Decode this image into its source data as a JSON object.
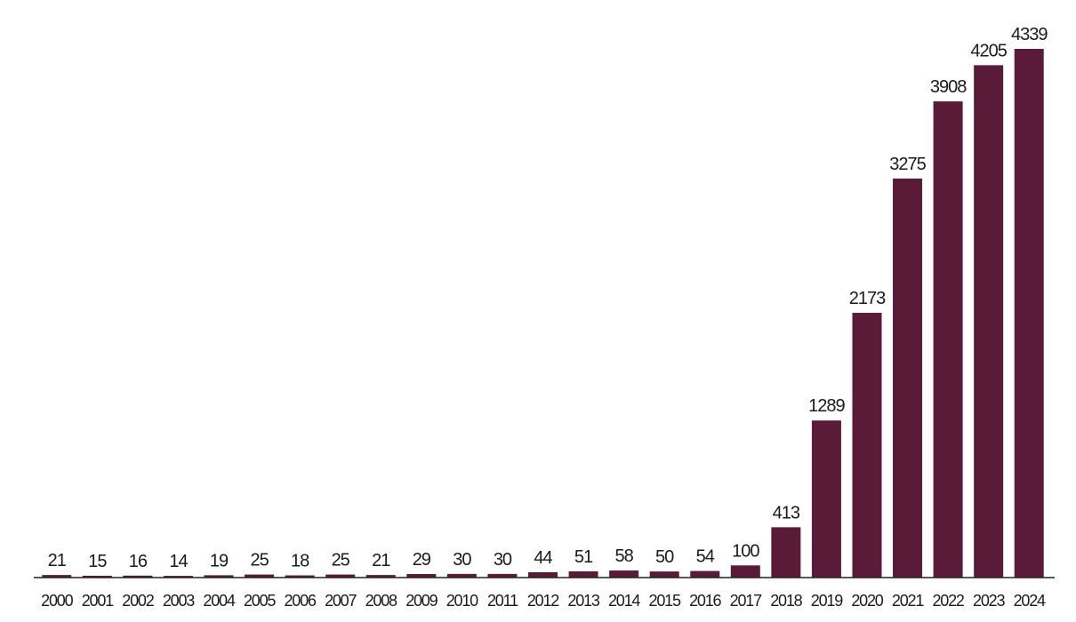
{
  "chart_data": {
    "type": "bar",
    "categories": [
      "2000",
      "2001",
      "2002",
      "2003",
      "2004",
      "2005",
      "2006",
      "2007",
      "2008",
      "2009",
      "2010",
      "2011",
      "2012",
      "2013",
      "2014",
      "2015",
      "2016",
      "2017",
      "2018",
      "2019",
      "2020",
      "2021",
      "2022",
      "2023",
      "2024"
    ],
    "values": [
      21,
      15,
      16,
      14,
      19,
      25,
      18,
      25,
      21,
      29,
      30,
      30,
      44,
      51,
      58,
      50,
      54,
      100,
      413,
      1289,
      2173,
      3275,
      3908,
      4205,
      4339
    ],
    "color": "#591b38"
  }
}
